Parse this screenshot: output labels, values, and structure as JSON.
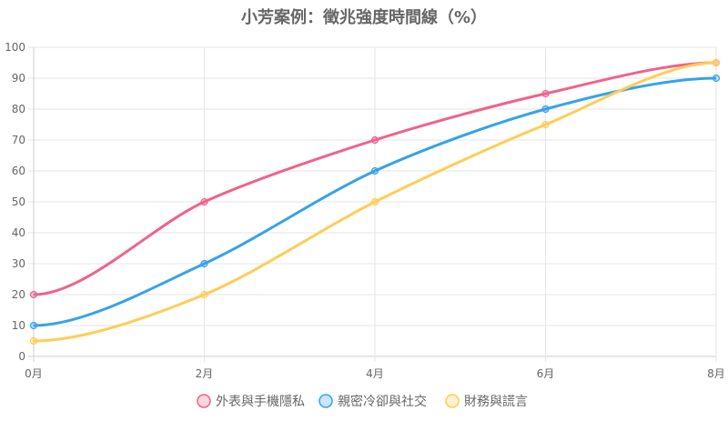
{
  "chart_data": {
    "type": "line",
    "title": "小芳案例：徵兆強度時間線（%）",
    "x": [
      0,
      2,
      4,
      6,
      8
    ],
    "x_tick_labels": [
      "0月",
      "2月",
      "4月",
      "6月",
      "8月"
    ],
    "y_tick_labels": [
      "0",
      "10",
      "20",
      "30",
      "40",
      "50",
      "60",
      "70",
      "80",
      "90",
      "100"
    ],
    "ylim": [
      0,
      100
    ],
    "xlim": [
      0,
      8
    ],
    "xlabel": "",
    "ylabel": "",
    "grid": true,
    "legend_position": "bottom",
    "series": [
      {
        "name": "外表與手機隱私",
        "values": [
          20,
          50,
          70,
          85,
          95
        ],
        "color": "#f0628a"
      },
      {
        "name": "親密冷卻與社交",
        "values": [
          10,
          30,
          60,
          80,
          90
        ],
        "color": "#36a2eb"
      },
      {
        "name": "財務與謊言",
        "values": [
          5,
          20,
          50,
          75,
          95
        ],
        "color": "#ffcd56"
      }
    ]
  }
}
